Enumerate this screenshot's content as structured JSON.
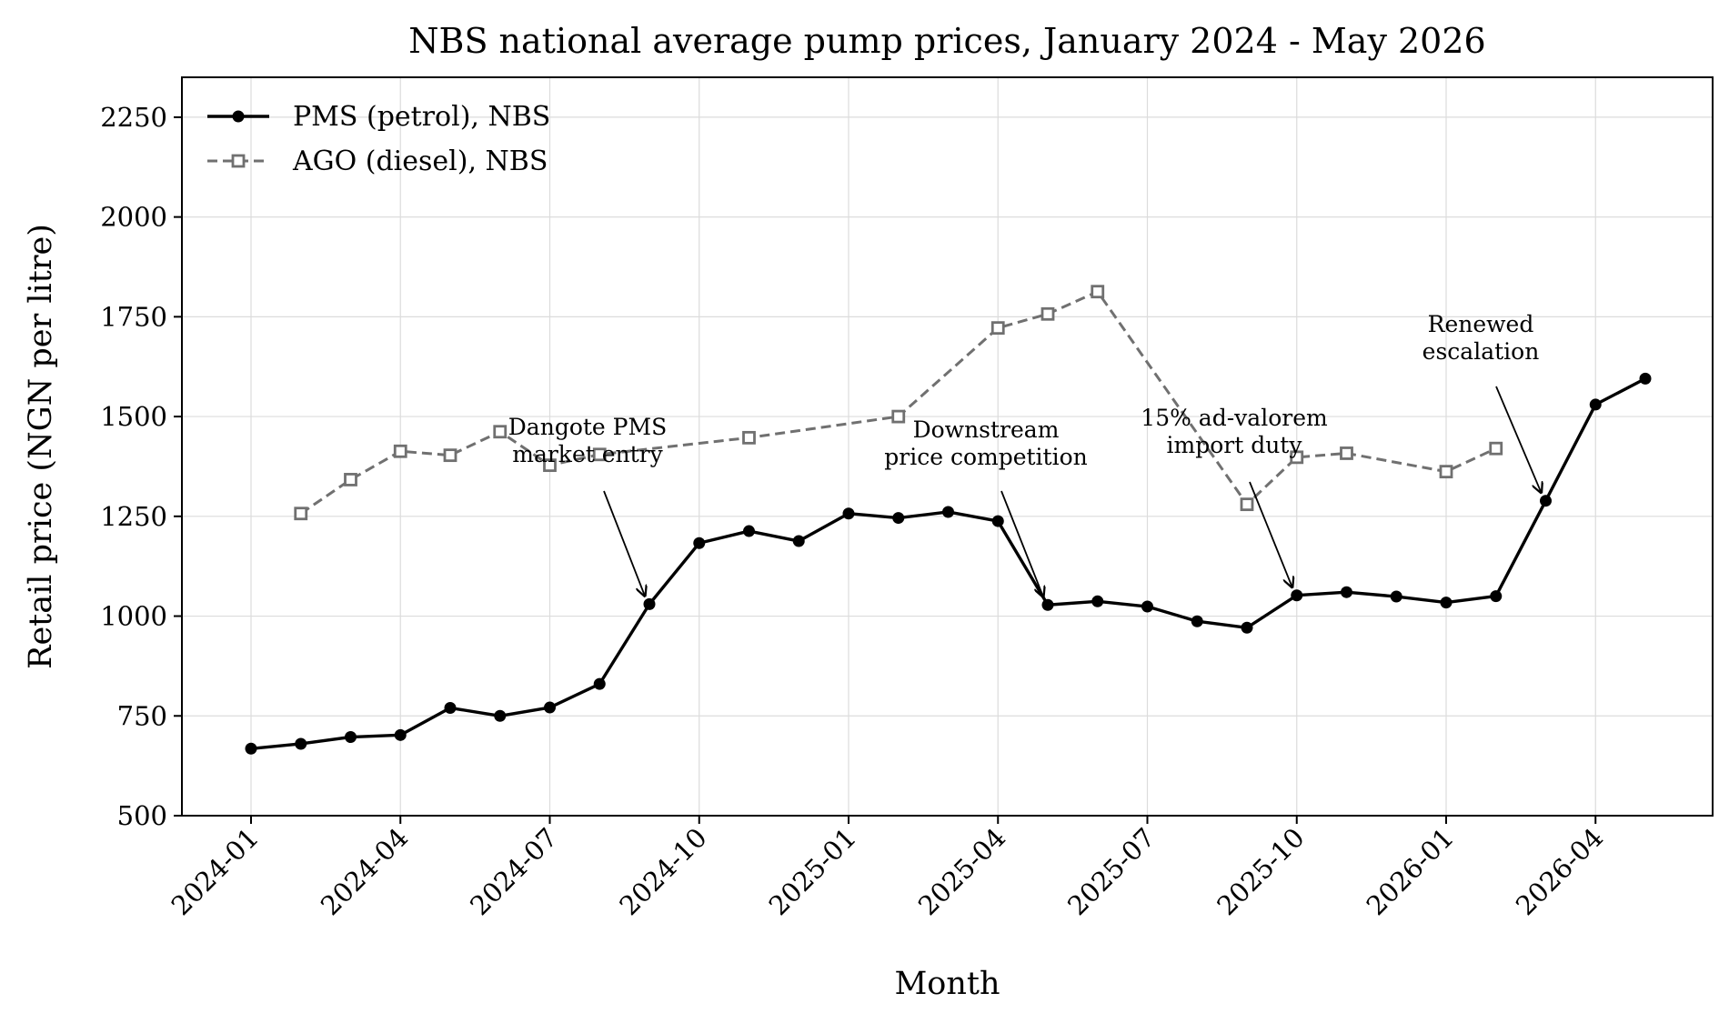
{
  "chart_data": {
    "type": "line",
    "title": "NBS national average pump prices, January 2024 - May 2026",
    "xlabel": "Month",
    "ylabel": "Retail price (NGN per litre)",
    "ylim": [
      500,
      2350
    ],
    "yticks": [
      500,
      750,
      1000,
      1250,
      1500,
      1750,
      2000,
      2250
    ],
    "xticks": [
      "2024-01",
      "2024-04",
      "2024-07",
      "2024-10",
      "2025-01",
      "2025-04",
      "2025-07",
      "2025-10",
      "2026-01",
      "2026-04"
    ],
    "grid": true,
    "legend_position": "top-left",
    "series": [
      {
        "name": "PMS (petrol), NBS",
        "style": "solid",
        "marker": "filled-circle",
        "color": "#000000",
        "points": [
          [
            "2024-01",
            668
          ],
          [
            "2024-02",
            680
          ],
          [
            "2024-03",
            697
          ],
          [
            "2024-04",
            702
          ],
          [
            "2024-05",
            770
          ],
          [
            "2024-06",
            750
          ],
          [
            "2024-07",
            771
          ],
          [
            "2024-08",
            830
          ],
          [
            "2024-09",
            1030
          ],
          [
            "2024-10",
            1183
          ],
          [
            "2024-11",
            1213
          ],
          [
            "2024-12",
            1188
          ],
          [
            "2025-01",
            1257
          ],
          [
            "2025-02",
            1246
          ],
          [
            "2025-03",
            1261
          ],
          [
            "2025-04",
            1238
          ],
          [
            "2025-05",
            1028
          ],
          [
            "2025-06",
            1037
          ],
          [
            "2025-07",
            1024
          ],
          [
            "2025-08",
            987
          ],
          [
            "2025-09",
            971
          ],
          [
            "2025-10",
            1052
          ],
          [
            "2025-11",
            1060
          ],
          [
            "2025-12",
            1049
          ],
          [
            "2026-01",
            1034
          ],
          [
            "2026-02",
            1050
          ],
          [
            "2026-03",
            1289
          ],
          [
            "2026-04",
            1530
          ],
          [
            "2026-05",
            1595
          ]
        ]
      },
      {
        "name": "AGO (diesel), NBS",
        "style": "dashed",
        "marker": "hollow-square",
        "color": "#707070",
        "points": [
          [
            "2024-02",
            1257
          ],
          [
            "2024-03",
            1342
          ],
          [
            "2024-04",
            1413
          ],
          [
            "2024-05",
            1403
          ],
          [
            "2024-06",
            1462
          ],
          [
            "2024-07",
            1378
          ],
          [
            "2024-08",
            1405
          ],
          [
            "2024-11",
            1447
          ],
          [
            "2025-02",
            1500
          ],
          [
            "2025-04",
            1722
          ],
          [
            "2025-05",
            1757
          ],
          [
            "2025-06",
            1813
          ],
          [
            "2025-09",
            1280
          ],
          [
            "2025-10",
            1398
          ],
          [
            "2025-11",
            1408
          ],
          [
            "2026-01",
            1362
          ],
          [
            "2026-02",
            1420
          ]
        ]
      }
    ],
    "annotations": [
      {
        "lines": [
          "Dangote PMS",
          "market entry"
        ],
        "target": [
          "2024-09",
          1030
        ],
        "text_at": [
          "2024-08",
          1420
        ]
      },
      {
        "lines": [
          "Downstream",
          "price competition"
        ],
        "target": [
          "2025-05",
          1028
        ],
        "text_at": [
          "2025-04",
          1400
        ]
      },
      {
        "lines": [
          "15% ad-valorem",
          "import duty"
        ],
        "target": [
          "2025-10",
          1052
        ],
        "text_at": [
          "2025-09",
          1430
        ]
      },
      {
        "lines": [
          "Renewed",
          "escalation"
        ],
        "target": [
          "2026-03",
          1289
        ],
        "text_at": [
          "2026-03",
          1665
        ]
      }
    ]
  }
}
